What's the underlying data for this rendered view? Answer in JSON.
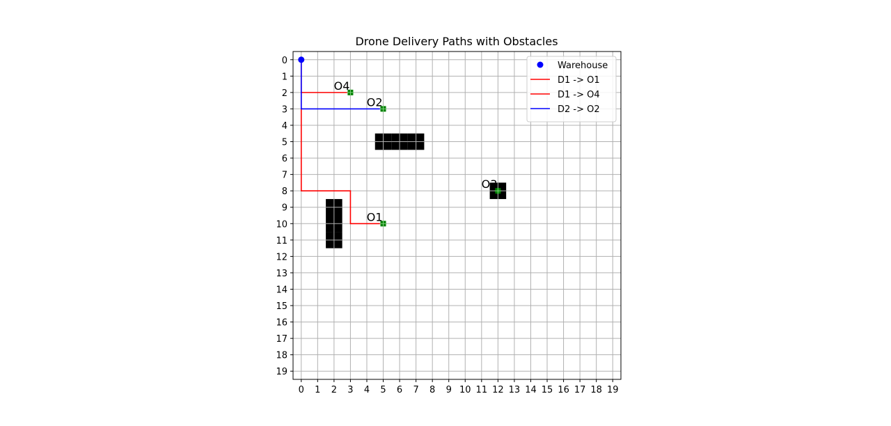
{
  "chart_data": {
    "type": "grid-path",
    "title": "Drone Delivery Paths with Obstacles",
    "xlim": [
      -0.5,
      19.5
    ],
    "ylim": [
      19.5,
      -0.5
    ],
    "x_ticks": [
      "0",
      "1",
      "2",
      "3",
      "4",
      "5",
      "6",
      "7",
      "8",
      "9",
      "10",
      "11",
      "12",
      "13",
      "14",
      "15",
      "16",
      "17",
      "18",
      "19"
    ],
    "y_ticks": [
      "0",
      "1",
      "2",
      "3",
      "4",
      "5",
      "6",
      "7",
      "8",
      "9",
      "10",
      "11",
      "12",
      "13",
      "14",
      "15",
      "16",
      "17",
      "18",
      "19"
    ],
    "grid": true,
    "legend_position": "upper-right",
    "warehouse": {
      "label": "Warehouse",
      "x": 0,
      "y": 0,
      "color": "#0000ff"
    },
    "obstacles": [
      {
        "x": 5,
        "y": 5
      },
      {
        "x": 6,
        "y": 5
      },
      {
        "x": 7,
        "y": 5
      },
      {
        "x": 12,
        "y": 8
      },
      {
        "x": 2,
        "y": 9
      },
      {
        "x": 2,
        "y": 10
      },
      {
        "x": 2,
        "y": 11
      }
    ],
    "orders": [
      {
        "label": "O1",
        "x": 5,
        "y": 10
      },
      {
        "label": "O2",
        "x": 5,
        "y": 3
      },
      {
        "label": "O3",
        "x": 12,
        "y": 8
      },
      {
        "label": "O4",
        "x": 3,
        "y": 2
      }
    ],
    "order_marker_color": "#008000",
    "paths": [
      {
        "name": "D1 -> O1",
        "color": "#ff0000",
        "points": [
          [
            0,
            0
          ],
          [
            0,
            8
          ],
          [
            3,
            8
          ],
          [
            3,
            10
          ],
          [
            5,
            10
          ]
        ]
      },
      {
        "name": "D1 -> O4",
        "color": "#ff0000",
        "points": [
          [
            0,
            0
          ],
          [
            0,
            2
          ],
          [
            3,
            2
          ]
        ]
      },
      {
        "name": "D2 -> O2",
        "color": "#0000ff",
        "points": [
          [
            0,
            0
          ],
          [
            0,
            3
          ],
          [
            5,
            3
          ]
        ]
      }
    ]
  }
}
